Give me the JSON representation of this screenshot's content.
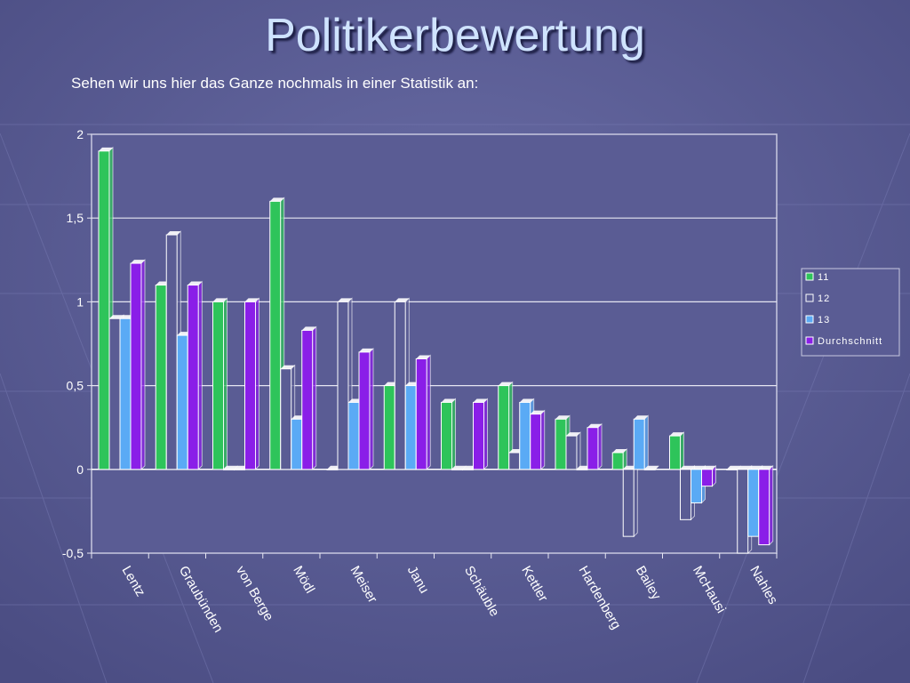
{
  "slide": {
    "title": "Politikerbewertung",
    "subtitle": "Sehen wir uns hier das Ganze nochmals in einer Statistik an:"
  },
  "chart_data": {
    "type": "bar",
    "categories": [
      "Lentz",
      "Graubünden",
      "von Berge",
      "Mödl",
      "Meiser",
      "Janu",
      "Schäuble",
      "Kettler",
      "Hardenberg",
      "Bailey",
      "McHausi",
      "Nahles"
    ],
    "series": [
      {
        "name": "11",
        "color": "#2ec45a",
        "values": [
          1.9,
          1.1,
          1.0,
          1.6,
          0,
          0.5,
          0.4,
          0.5,
          0.3,
          0.1,
          0.2,
          0
        ]
      },
      {
        "name": "12",
        "color": "#5a5c94",
        "values": [
          0.9,
          1.4,
          0,
          0.6,
          1.0,
          1.0,
          0,
          0.1,
          0.2,
          -0.4,
          -0.3,
          -0.5
        ]
      },
      {
        "name": "13",
        "color": "#5aaaf5",
        "values": [
          0.9,
          0.8,
          0,
          0.3,
          0.4,
          0.5,
          0,
          0.4,
          0,
          0.3,
          -0.2,
          -0.4
        ]
      },
      {
        "name": "Durchschnitt",
        "color": "#8a1ee8",
        "values": [
          1.23,
          1.1,
          1.0,
          0.83,
          0.7,
          0.66,
          0.4,
          0.33,
          0.25,
          0,
          -0.1,
          -0.45
        ]
      }
    ],
    "ylim": [
      -0.5,
      2
    ],
    "yticks": [
      "2",
      "1,5",
      "1",
      "0,5",
      "0",
      "-0,5"
    ],
    "grid": true,
    "legend": "right"
  }
}
